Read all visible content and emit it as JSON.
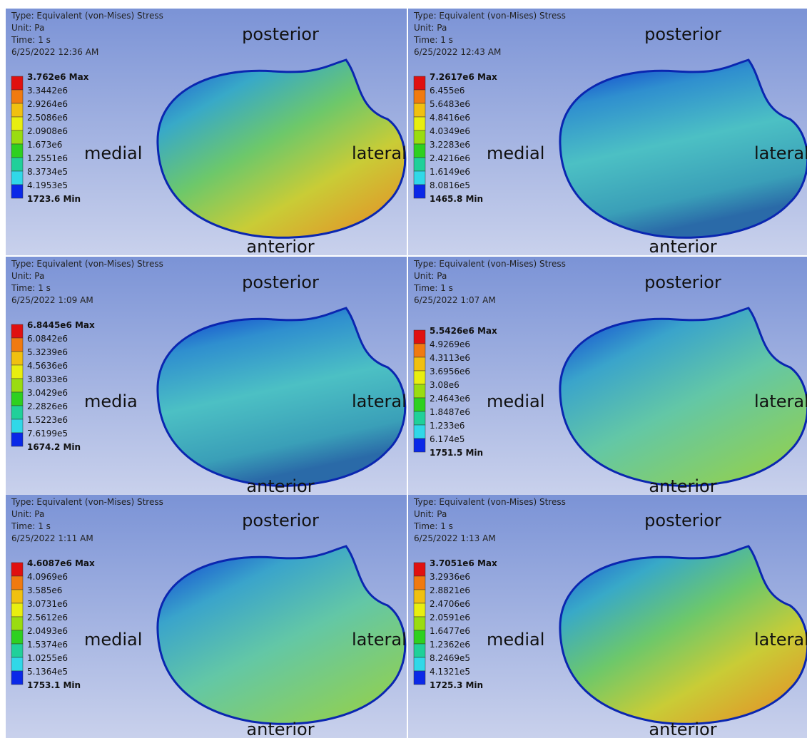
{
  "panels": [
    {
      "type": "Type: Equivalent (von-Mises) Stress",
      "unit": "Unit: Pa",
      "time": "Time: 1 s",
      "date": "6/25/2022 12:36 AM",
      "legend": [
        "3.762e6 Max",
        "3.3442e6",
        "2.9264e6",
        "2.5086e6",
        "2.0908e6",
        "1.673e6",
        "1.2551e6",
        "8.3734e5",
        "4.1953e5",
        "1723.6 Min"
      ],
      "labels": {
        "posterior": "posterior",
        "anterior": "anterior",
        "medial": "medial",
        "lateral": "lateral"
      }
    },
    {
      "type": "Type: Equivalent (von-Mises) Stress",
      "unit": "Unit: Pa",
      "time": "Time: 1 s",
      "date": "6/25/2022 12:43 AM",
      "legend": [
        "7.2617e6 Max",
        "6.455e6",
        "5.6483e6",
        "4.8416e6",
        "4.0349e6",
        "3.2283e6",
        "2.4216e6",
        "1.6149e6",
        "8.0816e5",
        "1465.8 Min"
      ],
      "labels": {
        "posterior": "posterior",
        "anterior": "anterior",
        "medial": "medial",
        "lateral": "lateral"
      }
    },
    {
      "type": "Type: Equivalent (von-Mises) Stress",
      "unit": "Unit: Pa",
      "time": "Time: 1 s",
      "date": "6/25/2022 1:09 AM",
      "legend": [
        "6.8445e6 Max",
        "6.0842e6",
        "5.3239e6",
        "4.5636e6",
        "3.8033e6",
        "3.0429e6",
        "2.2826e6",
        "1.5223e6",
        "7.6199e5",
        "1674.2 Min"
      ],
      "labels": {
        "posterior": "posterior",
        "anterior": "anterior",
        "medial": "media",
        "lateral": "lateral"
      }
    },
    {
      "type": "Type: Equivalent (von-Mises) Stress",
      "unit": "Unit: Pa",
      "time": "Time: 1 s",
      "date": "6/25/2022 1:07 AM",
      "legend": [
        "5.5426e6 Max",
        "4.9269e6",
        "4.3113e6",
        "3.6956e6",
        "3.08e6",
        "2.4643e6",
        "1.8487e6",
        "1.233e6",
        "6.174e5",
        "1751.5 Min"
      ],
      "labels": {
        "posterior": "posterior",
        "anterior": "anterior",
        "medial": "medial",
        "lateral": "lateral"
      }
    },
    {
      "type": "Type: Equivalent (von-Mises) Stress",
      "unit": "Unit: Pa",
      "time": "Time: 1 s",
      "date": "6/25/2022 1:11 AM",
      "legend": [
        "4.6087e6 Max",
        "4.0969e6",
        "3.585e6",
        "3.0731e6",
        "2.5612e6",
        "2.0493e6",
        "1.5374e6",
        "1.0255e6",
        "5.1364e5",
        "1753.1 Min"
      ],
      "labels": {
        "posterior": "posterior",
        "anterior": "anterior",
        "medial": "medial",
        "lateral": "lateral"
      }
    },
    {
      "type": "Type: Equivalent (von-Mises) Stress",
      "unit": "Unit: Pa",
      "time": "Time: 1 s",
      "date": "6/25/2022 1:13 AM",
      "legend": [
        "3.7051e6 Max",
        "3.2936e6",
        "2.8821e6",
        "2.4706e6",
        "2.0591e6",
        "1.6477e6",
        "1.2362e6",
        "8.2469e5",
        "4.1321e5",
        "1725.3 Min"
      ],
      "labels": {
        "posterior": "posterior",
        "anterior": "anterior",
        "medial": "medial",
        "lateral": "lateral"
      }
    }
  ]
}
